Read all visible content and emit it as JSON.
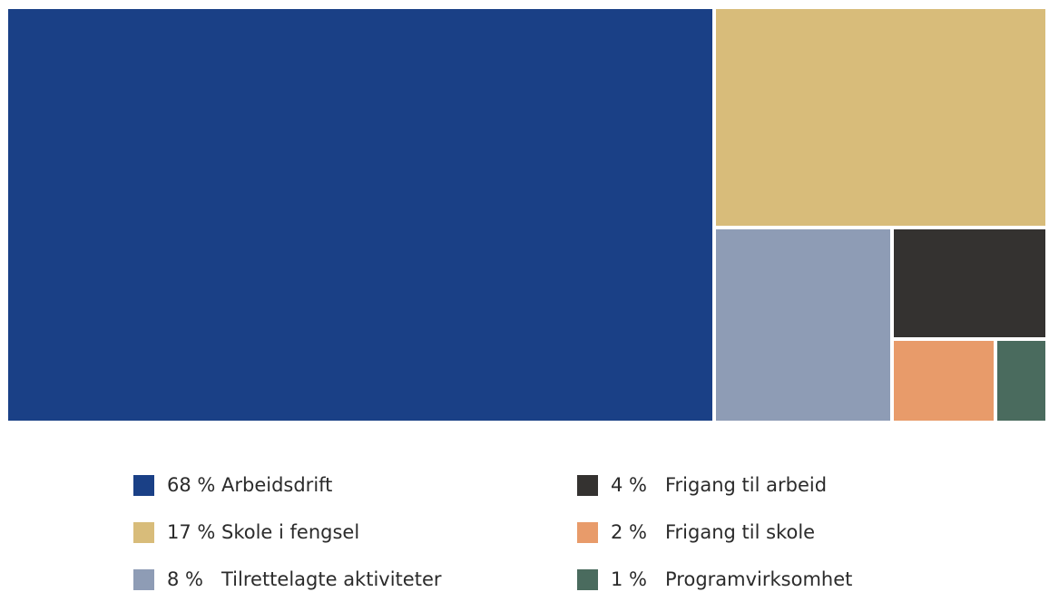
{
  "chart_data": {
    "type": "treemap",
    "unit": "%",
    "items": [
      {
        "value": 68,
        "pct_label": "68 %",
        "label": "Arbeidsdrift",
        "color": "#1a4086"
      },
      {
        "value": 17,
        "pct_label": "17 %",
        "label": "Skole i fengsel",
        "color": "#d8bc7a"
      },
      {
        "value": 8,
        "pct_label": "8 %",
        "label": "Tilrettelagte aktiviteter",
        "color": "#8e9cb5"
      },
      {
        "value": 4,
        "pct_label": "4 %",
        "label": "Frigang til arbeid",
        "color": "#343230"
      },
      {
        "value": 2,
        "pct_label": "2 %",
        "label": "Frigang til skole",
        "color": "#e89b6a"
      },
      {
        "value": 1,
        "pct_label": "1 %",
        "label": "Programvirksomhet",
        "color": "#4a6b5e"
      }
    ],
    "legend_position": "bottom"
  }
}
